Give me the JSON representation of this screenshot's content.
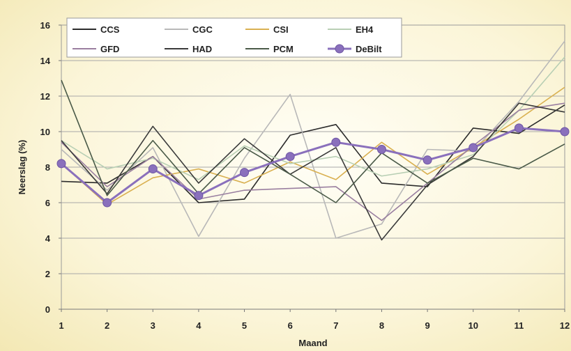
{
  "chart_data": {
    "type": "line",
    "xlabel": "Maand",
    "ylabel": "Neerslag (%)",
    "x": [
      1,
      2,
      3,
      4,
      5,
      6,
      7,
      8,
      9,
      10,
      11,
      12
    ],
    "xticks": [
      "1",
      "2",
      "3",
      "4",
      "5",
      "6",
      "7",
      "8",
      "9",
      "10",
      "11",
      "12"
    ],
    "yticks": [
      "0",
      "2",
      "4",
      "6",
      "8",
      "10",
      "12",
      "14",
      "16"
    ],
    "ylim": [
      0,
      16
    ],
    "grid": true,
    "legend_position": "top",
    "series": [
      {
        "name": "CCS",
        "color": "#2b2b2b",
        "marker": false,
        "values": [
          7.2,
          7.1,
          8.6,
          6.0,
          6.2,
          9.8,
          10.4,
          7.1,
          6.9,
          10.2,
          9.9,
          11.5
        ]
      },
      {
        "name": "CGC",
        "color": "#b8b8b8",
        "marker": false,
        "values": [
          9.0,
          6.7,
          9.1,
          4.1,
          8.5,
          12.1,
          4.0,
          4.8,
          9.0,
          8.9,
          11.7,
          15.1
        ]
      },
      {
        "name": "CSI",
        "color": "#d9b050",
        "marker": false,
        "values": [
          8.2,
          5.9,
          7.4,
          7.9,
          7.1,
          8.3,
          7.3,
          9.4,
          7.6,
          9.1,
          10.7,
          12.5
        ]
      },
      {
        "name": "EH4",
        "color": "#b8cfb4",
        "marker": false,
        "values": [
          9.5,
          7.9,
          8.5,
          7.3,
          9.2,
          8.2,
          8.6,
          7.5,
          7.9,
          8.7,
          11.2,
          14.2
        ]
      },
      {
        "name": "GFD",
        "color": "#9a7fa0",
        "marker": false,
        "values": [
          9.4,
          6.9,
          8.6,
          6.2,
          6.7,
          6.8,
          6.9,
          5.0,
          7.1,
          9.2,
          11.2,
          11.6
        ]
      },
      {
        "name": "HAD",
        "color": "#3a3a3a",
        "marker": false,
        "values": [
          9.5,
          6.5,
          10.3,
          7.1,
          9.6,
          7.6,
          9.1,
          3.9,
          7.0,
          8.6,
          11.6,
          11.1
        ]
      },
      {
        "name": "PCM",
        "color": "#4a5a48",
        "marker": false,
        "values": [
          12.9,
          6.4,
          9.5,
          6.5,
          9.1,
          7.6,
          6.0,
          8.8,
          7.1,
          8.5,
          7.9,
          9.3
        ]
      },
      {
        "name": "DeBilt",
        "color": "#8a70bc",
        "marker": true,
        "values": [
          8.2,
          6.0,
          7.9,
          6.4,
          7.7,
          8.6,
          9.4,
          9.0,
          8.4,
          9.1,
          10.2,
          10.0
        ]
      }
    ]
  }
}
